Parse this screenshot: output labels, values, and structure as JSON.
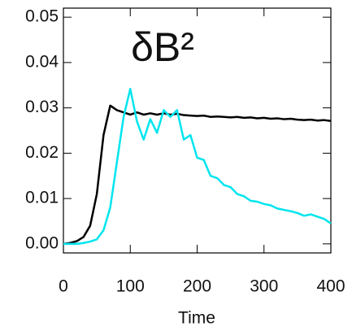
{
  "chart_data": {
    "type": "line",
    "annotation": "δB²",
    "x_label": "Time",
    "x": [
      0,
      10,
      20,
      30,
      40,
      50,
      60,
      70,
      80,
      90,
      100,
      110,
      120,
      130,
      140,
      150,
      160,
      170,
      180,
      190,
      200,
      210,
      220,
      230,
      240,
      250,
      260,
      270,
      280,
      290,
      300,
      310,
      320,
      330,
      340,
      350,
      360,
      370,
      380,
      390,
      400
    ],
    "series": [
      {
        "color": "#000000",
        "values": [
          0,
          0.0002,
          0.0006,
          0.0015,
          0.004,
          0.011,
          0.024,
          0.0305,
          0.0295,
          0.029,
          0.0285,
          0.029,
          0.0285,
          0.0288,
          0.0285,
          0.0288,
          0.0285,
          0.0287,
          0.0284,
          0.0283,
          0.0282,
          0.0283,
          0.028,
          0.0281,
          0.028,
          0.0279,
          0.028,
          0.0278,
          0.0279,
          0.0277,
          0.0278,
          0.0276,
          0.0277,
          0.0275,
          0.0276,
          0.0274,
          0.0273,
          0.0274,
          0.0272,
          0.0273,
          0.0271
        ]
      },
      {
        "color": "#00e5ee",
        "values": [
          0,
          0,
          0,
          0.0002,
          0.0005,
          0.001,
          0.003,
          0.008,
          0.018,
          0.028,
          0.0342,
          0.027,
          0.023,
          0.0275,
          0.0245,
          0.0295,
          0.028,
          0.0295,
          0.023,
          0.024,
          0.019,
          0.0185,
          0.015,
          0.0145,
          0.013,
          0.0125,
          0.011,
          0.0105,
          0.0095,
          0.0093,
          0.0088,
          0.0085,
          0.0078,
          0.0075,
          0.0072,
          0.0068,
          0.0062,
          0.0065,
          0.006,
          0.0055,
          0.0045
        ]
      }
    ],
    "xlim": [
      0,
      400
    ],
    "xticks": [
      0,
      100,
      200,
      300,
      400
    ],
    "ylim": [
      -0.002,
      0.052
    ],
    "yticks": [
      {
        "value": 0,
        "label": "0.00"
      },
      0.01,
      0.02,
      0.03,
      0.04,
      0.05
    ]
  }
}
